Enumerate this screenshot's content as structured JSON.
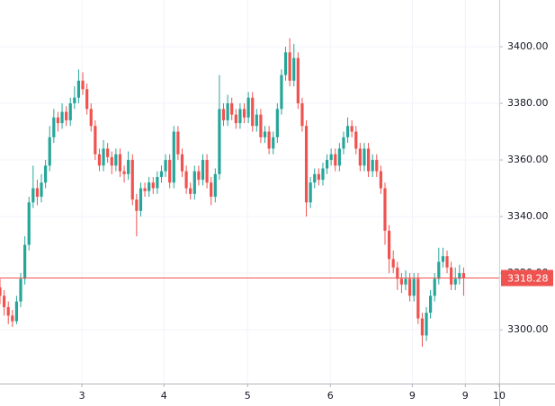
{
  "chart_data": {
    "type": "candlestick",
    "up_color": "#26a69a",
    "down_color": "#ef5350",
    "price_line_color": "#ef5350",
    "grid": true,
    "last_price": 3318.28,
    "ylim": [
      3281,
      3416.5
    ],
    "yticks": [
      {
        "value": 3300,
        "label": "3300.00"
      },
      {
        "value": 3320,
        "label": "3320.00"
      },
      {
        "value": 3340,
        "label": "3340.00"
      },
      {
        "value": 3360,
        "label": "3360.00"
      },
      {
        "value": 3380,
        "label": "3380.00"
      },
      {
        "value": 3400,
        "label": "3400.00"
      }
    ],
    "xlim": [
      0,
      120.6
    ],
    "xticks": [
      {
        "value": 19.8,
        "label": "3"
      },
      {
        "value": 39.6,
        "label": "4"
      },
      {
        "value": 59.8,
        "label": "5"
      },
      {
        "value": 79.8,
        "label": "6"
      },
      {
        "value": 99.6,
        "label": "9"
      },
      {
        "value": 112.4,
        "label": "9"
      },
      {
        "value": 120.6,
        "label": "10"
      }
    ],
    "ohlc": [
      [
        3315,
        3318,
        3309,
        3312
      ],
      [
        3312,
        3314,
        3305,
        3308
      ],
      [
        3308,
        3310,
        3302,
        3305
      ],
      [
        3305,
        3307,
        3301,
        3303
      ],
      [
        3303,
        3312,
        3302,
        3310
      ],
      [
        3310,
        3320,
        3308,
        3318
      ],
      [
        3318,
        3333,
        3316,
        3330
      ],
      [
        3330,
        3347,
        3328,
        3345
      ],
      [
        3345,
        3358,
        3343,
        3350
      ],
      [
        3350,
        3353,
        3344,
        3347
      ],
      [
        3347,
        3355,
        3345,
        3352
      ],
      [
        3352,
        3360,
        3350,
        3358
      ],
      [
        3358,
        3372,
        3356,
        3368
      ],
      [
        3368,
        3378,
        3366,
        3375
      ],
      [
        3375,
        3377,
        3370,
        3373
      ],
      [
        3373,
        3380,
        3371,
        3377
      ],
      [
        3377,
        3379,
        3372,
        3374
      ],
      [
        3374,
        3382,
        3372,
        3380
      ],
      [
        3380,
        3386,
        3378,
        3382
      ],
      [
        3382,
        3392,
        3380,
        3388
      ],
      [
        3388,
        3391,
        3383,
        3385
      ],
      [
        3385,
        3387,
        3376,
        3378
      ],
      [
        3378,
        3380,
        3370,
        3372
      ],
      [
        3372,
        3374,
        3360,
        3362
      ],
      [
        3362,
        3364,
        3356,
        3358
      ],
      [
        3358,
        3367,
        3356,
        3364
      ],
      [
        3364,
        3366,
        3359,
        3361
      ],
      [
        3361,
        3363,
        3355,
        3358
      ],
      [
        3358,
        3364,
        3356,
        3362
      ],
      [
        3362,
        3364,
        3354,
        3356
      ],
      [
        3356,
        3358,
        3352,
        3355
      ],
      [
        3355,
        3363,
        3353,
        3360
      ],
      [
        3360,
        3362,
        3344,
        3346
      ],
      [
        3346,
        3348,
        3333,
        3342
      ],
      [
        3342,
        3352,
        3340,
        3350
      ],
      [
        3350,
        3352,
        3347,
        3349
      ],
      [
        3349,
        3354,
        3347,
        3352
      ],
      [
        3352,
        3354,
        3348,
        3350
      ],
      [
        3350,
        3356,
        3348,
        3354
      ],
      [
        3354,
        3358,
        3352,
        3356
      ],
      [
        3356,
        3362,
        3354,
        3360
      ],
      [
        3360,
        3362,
        3350,
        3352
      ],
      [
        3352,
        3372,
        3350,
        3370
      ],
      [
        3370,
        3372,
        3360,
        3362
      ],
      [
        3362,
        3364,
        3354,
        3356
      ],
      [
        3356,
        3358,
        3348,
        3350
      ],
      [
        3350,
        3352,
        3346,
        3348
      ],
      [
        3348,
        3358,
        3346,
        3356
      ],
      [
        3356,
        3358,
        3351,
        3353
      ],
      [
        3353,
        3362,
        3351,
        3360
      ],
      [
        3360,
        3362,
        3350,
        3352
      ],
      [
        3352,
        3354,
        3344,
        3347
      ],
      [
        3347,
        3357,
        3345,
        3355
      ],
      [
        3355,
        3390,
        3353,
        3378
      ],
      [
        3378,
        3380,
        3372,
        3374
      ],
      [
        3374,
        3383,
        3372,
        3380
      ],
      [
        3380,
        3382,
        3374,
        3376
      ],
      [
        3376,
        3378,
        3371,
        3373
      ],
      [
        3373,
        3380,
        3371,
        3378
      ],
      [
        3378,
        3380,
        3373,
        3375
      ],
      [
        3375,
        3384,
        3373,
        3382
      ],
      [
        3382,
        3384,
        3370,
        3372
      ],
      [
        3372,
        3378,
        3370,
        3376
      ],
      [
        3376,
        3378,
        3366,
        3368
      ],
      [
        3368,
        3372,
        3366,
        3370
      ],
      [
        3370,
        3372,
        3362,
        3364
      ],
      [
        3364,
        3370,
        3362,
        3368
      ],
      [
        3368,
        3380,
        3366,
        3378
      ],
      [
        3378,
        3392,
        3376,
        3390
      ],
      [
        3390,
        3400,
        3388,
        3398
      ],
      [
        3398,
        3403,
        3386,
        3388
      ],
      [
        3388,
        3401,
        3386,
        3396
      ],
      [
        3396,
        3398,
        3378,
        3380
      ],
      [
        3380,
        3382,
        3370,
        3372
      ],
      [
        3372,
        3374,
        3340,
        3345
      ],
      [
        3345,
        3354,
        3343,
        3352
      ],
      [
        3352,
        3357,
        3350,
        3355
      ],
      [
        3355,
        3357,
        3351,
        3353
      ],
      [
        3353,
        3359,
        3351,
        3357
      ],
      [
        3357,
        3362,
        3355,
        3360
      ],
      [
        3360,
        3364,
        3358,
        3362
      ],
      [
        3362,
        3364,
        3356,
        3358
      ],
      [
        3358,
        3366,
        3356,
        3364
      ],
      [
        3364,
        3370,
        3362,
        3368
      ],
      [
        3368,
        3375,
        3366,
        3372
      ],
      [
        3372,
        3374,
        3368,
        3370
      ],
      [
        3370,
        3372,
        3362,
        3364
      ],
      [
        3364,
        3366,
        3356,
        3358
      ],
      [
        3358,
        3366,
        3356,
        3364
      ],
      [
        3364,
        3366,
        3354,
        3356
      ],
      [
        3356,
        3362,
        3354,
        3360
      ],
      [
        3360,
        3362,
        3354,
        3356
      ],
      [
        3356,
        3358,
        3348,
        3350
      ],
      [
        3350,
        3352,
        3330,
        3335
      ],
      [
        3335,
        3337,
        3320,
        3325
      ],
      [
        3325,
        3328,
        3320,
        3322
      ],
      [
        3322,
        3324,
        3314,
        3318
      ],
      [
        3318,
        3320,
        3313,
        3316
      ],
      [
        3316,
        3321,
        3314,
        3318
      ],
      [
        3318,
        3320,
        3310,
        3312
      ],
      [
        3312,
        3320,
        3310,
        3318
      ],
      [
        3318,
        3320,
        3302,
        3304
      ],
      [
        3304,
        3306,
        3294,
        3298
      ],
      [
        3298,
        3308,
        3296,
        3306
      ],
      [
        3306,
        3314,
        3304,
        3312
      ],
      [
        3312,
        3320,
        3310,
        3318
      ],
      [
        3318,
        3329,
        3316,
        3324
      ],
      [
        3324,
        3329,
        3322,
        3326
      ],
      [
        3326,
        3328,
        3320,
        3322
      ],
      [
        3322,
        3324,
        3314,
        3316
      ],
      [
        3316,
        3322,
        3314,
        3318
      ],
      [
        3318,
        3323,
        3316,
        3320
      ],
      [
        3320,
        3322,
        3312,
        3318.28
      ]
    ]
  }
}
